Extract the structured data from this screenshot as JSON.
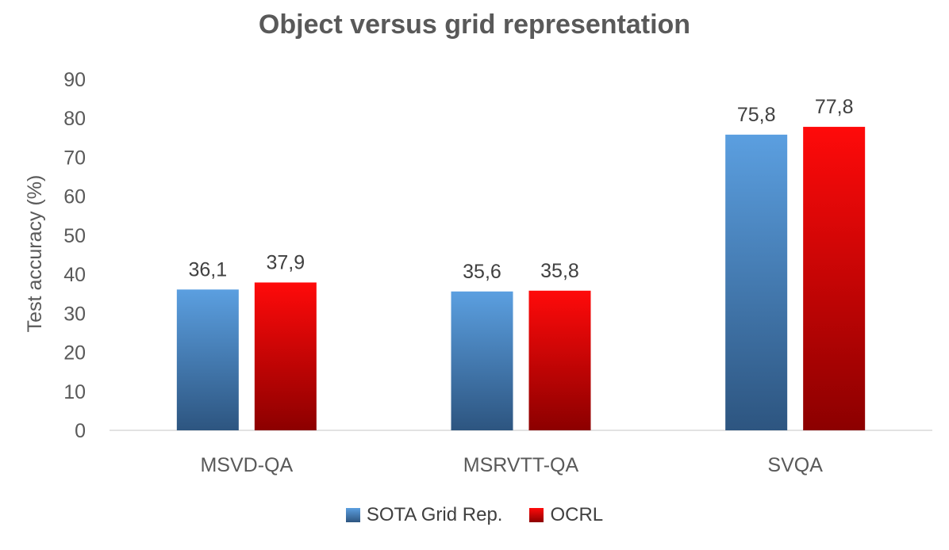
{
  "chart_data": {
    "type": "bar",
    "title": "Object versus grid representation",
    "xlabel": "",
    "ylabel": "Test accuracy (%)",
    "categories": [
      "MSVD-QA",
      "MSRVTT-QA",
      "SVQA"
    ],
    "series": [
      {
        "name": "SOTA Grid Rep.",
        "values": [
          36.1,
          35.6,
          75.8
        ],
        "labels": [
          "36,1",
          "35,6",
          "75,8"
        ],
        "color": "#4a8ac9"
      },
      {
        "name": "OCRL",
        "values": [
          37.9,
          35.8,
          77.8
        ],
        "labels": [
          "37,9",
          "35,8",
          "77,8"
        ],
        "color": "#e00000"
      }
    ],
    "ylim": [
      0,
      90
    ],
    "yticks": [
      0,
      10,
      20,
      30,
      40,
      50,
      60,
      70,
      80,
      90
    ],
    "grid": false,
    "legend_position": "bottom"
  }
}
